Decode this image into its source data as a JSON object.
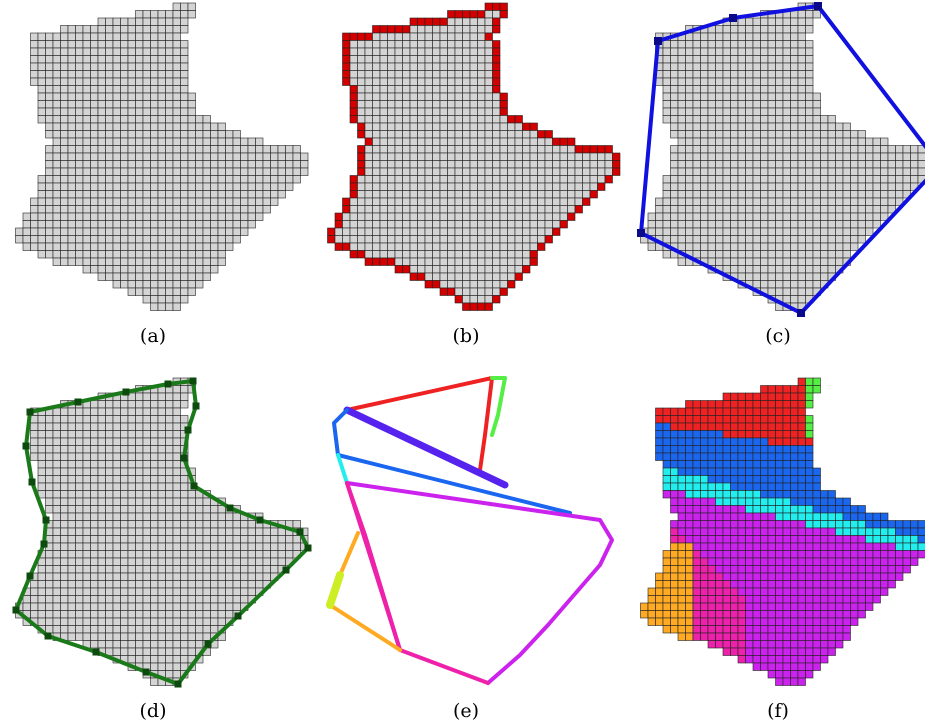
{
  "captions": {
    "a": "(a)",
    "b": "(b)",
    "c": "(c)",
    "d": "(d)",
    "e": "(e)",
    "f": "(f)"
  },
  "colors": {
    "pixel_fill": "#d4d4d4",
    "pixel_stroke": "#222222",
    "boundary_pixels": "#d40000",
    "convex_hull": "#1010e0",
    "polygon_outline": "#1a7a1a",
    "segment_palette": [
      "#ee2222",
      "#55ee44",
      "#5522ee",
      "#1a66ee",
      "#22eeee",
      "#cc22ee",
      "#ee22aa",
      "#ffaa22",
      "#ccee22"
    ]
  }
}
